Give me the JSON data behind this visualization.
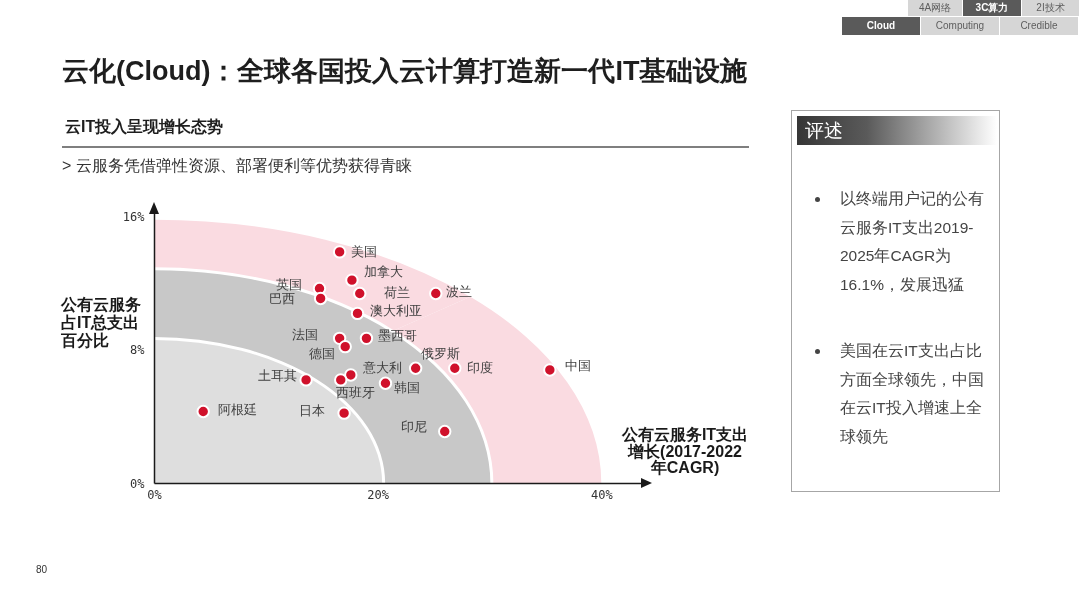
{
  "chart_data": [
    {
      "type": "scatter",
      "title": "云化(Cloud)：全球各国投入云计算打造新一代IT基础设施",
      "subtitle": "云IT投入呈现增长态势",
      "xlabel": "公有云服务IT支出增长(2017-2022年CAGR)",
      "ylabel": "公有云服务占IT总支出百分比",
      "annotations": [
        "> 云服务凭借弹性资源、部署便利等优势获得青睐",
        "4A网络",
        "3C算力",
        "2I技术",
        "Cloud",
        "Computing",
        "Credible",
        "80"
      ],
      "xlim": [
        0,
        44
      ],
      "ylim": [
        0,
        16.6
      ],
      "xticks": [
        {
          "value": 0,
          "label": "0%"
        },
        {
          "value": 20,
          "label": "20%"
        },
        {
          "value": 40,
          "label": "40%"
        }
      ],
      "yticks": [
        {
          "value": 0,
          "label": "0%"
        },
        {
          "value": 8,
          "label": "8%"
        },
        {
          "value": 16,
          "label": "16%"
        }
      ],
      "marker": "circle",
      "series": [
        {
          "name": "美国",
          "color": "#d0112b",
          "x": [
            16.6
          ],
          "values": [
            13.9
          ]
        },
        {
          "name": "加拿大",
          "color": "#d0112b",
          "x": [
            17.7
          ],
          "values": [
            12.2
          ]
        },
        {
          "name": "荷兰",
          "color": "#d0112b",
          "x": [
            18.4
          ],
          "values": [
            11.4
          ]
        },
        {
          "name": "波兰",
          "color": "#d0112b",
          "x": [
            25.2
          ],
          "values": [
            11.4
          ]
        },
        {
          "name": "英国",
          "color": "#d0112b",
          "x": [
            14.8
          ],
          "values": [
            11.7
          ]
        },
        {
          "name": "巴西",
          "color": "#d0112b",
          "x": [
            14.9
          ],
          "values": [
            11.1
          ]
        },
        {
          "name": "澳大利亚",
          "color": "#d0112b",
          "x": [
            18.2
          ],
          "values": [
            10.2
          ]
        },
        {
          "name": "法国",
          "color": "#d0112b",
          "x": [
            16.6
          ],
          "values": [
            8.7
          ]
        },
        {
          "name": "德国",
          "color": "#d0112b",
          "x": [
            17.1
          ],
          "values": [
            8.2
          ]
        },
        {
          "name": "墨西哥",
          "color": "#d0112b",
          "x": [
            19.0
          ],
          "values": [
            8.7
          ]
        },
        {
          "name": "俄罗斯",
          "color": "#d0112b",
          "x": [
            23.4
          ],
          "values": [
            6.9
          ]
        },
        {
          "name": "印度",
          "color": "#d0112b",
          "x": [
            26.9
          ],
          "values": [
            6.9
          ]
        },
        {
          "name": "中国",
          "color": "#d0112b",
          "x": [
            35.4
          ],
          "values": [
            6.8
          ]
        },
        {
          "name": "意大利",
          "color": "#d0112b",
          "x": [
            17.6
          ],
          "values": [
            6.5
          ]
        },
        {
          "name": "西班牙",
          "color": "#d0112b",
          "x": [
            16.7
          ],
          "values": [
            6.2
          ]
        },
        {
          "name": "韩国",
          "color": "#d0112b",
          "x": [
            20.7
          ],
          "values": [
            6.0
          ]
        },
        {
          "name": "土耳其",
          "color": "#d0112b",
          "x": [
            13.6
          ],
          "values": [
            6.2
          ]
        },
        {
          "name": "阿根廷",
          "color": "#d0112b",
          "x": [
            4.4
          ],
          "values": [
            4.3
          ]
        },
        {
          "name": "日本",
          "color": "#d0112b",
          "x": [
            17.0
          ],
          "values": [
            4.2
          ]
        },
        {
          "name": "印尼",
          "color": "#d0112b",
          "x": [
            26.0
          ],
          "values": [
            3.1
          ]
        }
      ]
    },
    {
      "type": "other",
      "title": "评述",
      "annotations": [
        "以终端用户记的公有云服务IT支出2019-2025年CAGR为16.1%，发展迅猛",
        "美国在云IT支出占比方面全球领先，中国在云IT投入增速上全球领先"
      ]
    }
  ]
}
